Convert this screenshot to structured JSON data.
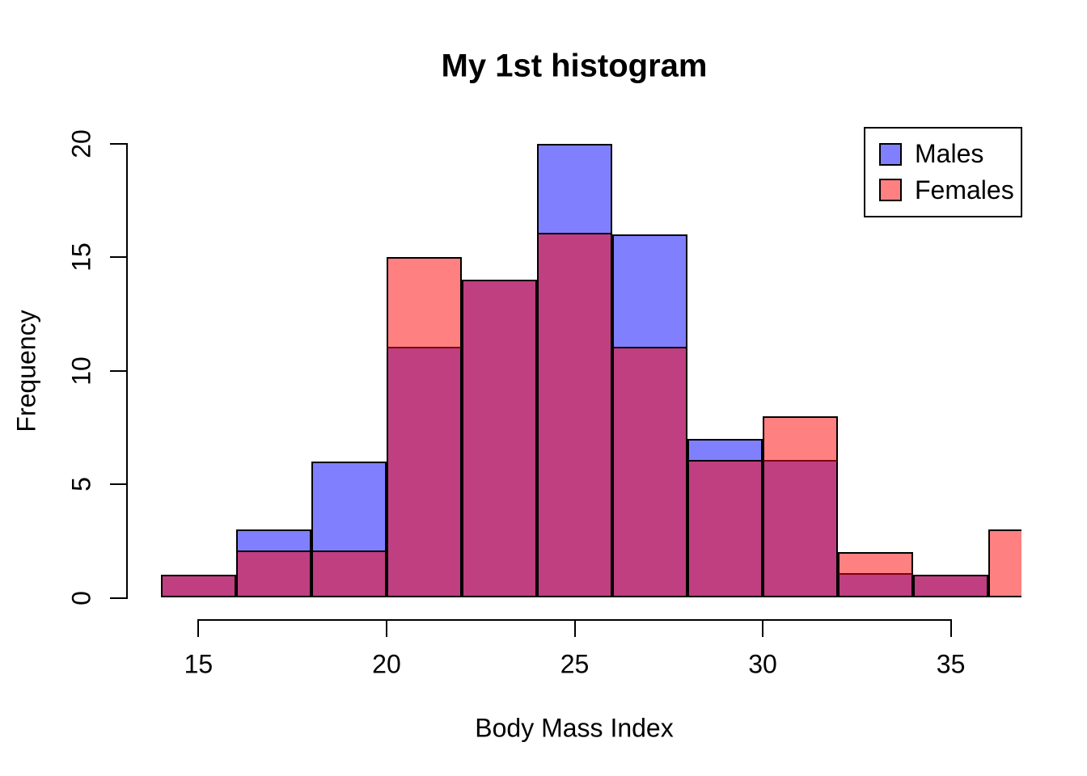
{
  "title": "My 1st histogram",
  "x_axis": {
    "label": "Body Mass Index",
    "ticks": [
      15,
      20,
      25,
      30,
      35
    ]
  },
  "y_axis": {
    "label": "Frequency",
    "ticks": [
      0,
      5,
      10,
      15,
      20
    ]
  },
  "legend": {
    "position": "topright",
    "items": [
      {
        "label": "Males",
        "color": "#8080FF"
      },
      {
        "label": "Females",
        "color": "#FF8080"
      }
    ]
  },
  "colors": {
    "males_fill": "#8080FF",
    "females_fill": "#FF8080",
    "overlap_fill": "#BF3F80",
    "bar_border": "#000000",
    "covered_border": "#7F0010",
    "axis": "#000000",
    "background": "#FFFFFF"
  },
  "chart_data": {
    "type": "bar",
    "subtype": "overlaid-histogram",
    "title": "My 1st histogram",
    "xlabel": "Body Mass Index",
    "ylabel": "Frequency",
    "bin_edges": [
      14,
      16,
      18,
      20,
      22,
      24,
      26,
      28,
      30,
      32,
      34,
      36,
      38
    ],
    "series": [
      {
        "name": "Males",
        "color": "#8080FF",
        "values": [
          1,
          3,
          6,
          11,
          14,
          20,
          16,
          7,
          6,
          1,
          1,
          0
        ]
      },
      {
        "name": "Females",
        "color": "#FF8080",
        "values": [
          1,
          2,
          2,
          15,
          14,
          16,
          11,
          6,
          8,
          2,
          1,
          3
        ]
      }
    ],
    "x_ticks": [
      15,
      20,
      25,
      30,
      35
    ],
    "y_ticks": [
      0,
      5,
      10,
      15,
      20
    ],
    "xlim": [
      13.12,
      36.88
    ],
    "ylim": [
      -0.8,
      20.8
    ],
    "grid": false,
    "legend_position": "topright",
    "note_last_female_bar_clipped_at": 36.88
  }
}
